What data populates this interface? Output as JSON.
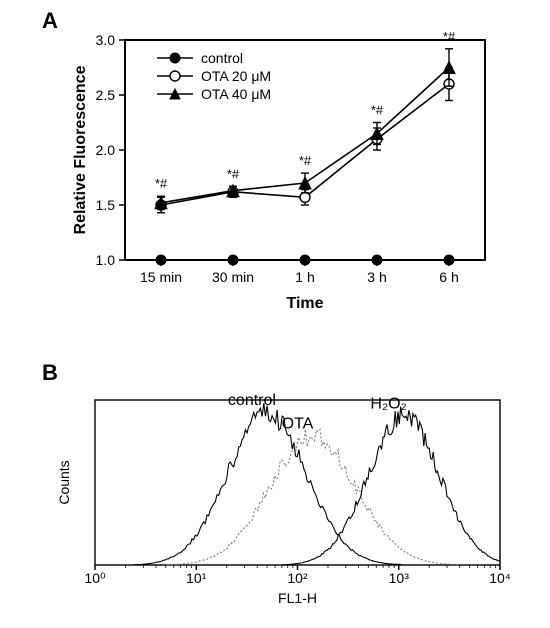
{
  "panelA": {
    "label": "A",
    "type": "line",
    "x_categories": [
      "15 min",
      "30 min",
      "1 h",
      "3 h",
      "6 h"
    ],
    "x_title": "Time",
    "y_title": "Relative Fluorescence",
    "ylim": [
      1.0,
      3.0
    ],
    "ytick_step": 0.5,
    "annotations": [
      "*#",
      "*#",
      "*#",
      "*#",
      "*#"
    ],
    "annotation_fontsize": 13,
    "title_fontsize": 16,
    "tick_fontsize": 14,
    "background_color": "#ffffff",
    "axis_color": "#000000",
    "line_width": 1.6,
    "legend": {
      "position": "top-left-inside",
      "items": [
        {
          "label": "control",
          "marker": "filled-circle",
          "color": "#000000"
        },
        {
          "label": "OTA 20 μM",
          "marker": "open-circle",
          "color": "#000000"
        },
        {
          "label": "OTA 40 μM",
          "marker": "filled-triangle",
          "color": "#000000"
        }
      ]
    },
    "series": [
      {
        "name": "control",
        "marker": "filled-circle",
        "marker_size": 5,
        "color": "#000000",
        "values": [
          1.0,
          1.0,
          1.0,
          1.0,
          1.0
        ],
        "err_low": [
          0,
          0,
          0,
          0,
          0
        ],
        "err_high": [
          0,
          0,
          0,
          0,
          0
        ]
      },
      {
        "name": "OTA 20 μM",
        "marker": "open-circle",
        "marker_size": 5,
        "color": "#000000",
        "values": [
          1.5,
          1.62,
          1.57,
          2.1,
          2.6
        ],
        "err_low": [
          0.07,
          0.05,
          0.07,
          0.1,
          0.15
        ],
        "err_high": [
          0.07,
          0.05,
          0.07,
          0.1,
          0.15
        ]
      },
      {
        "name": "OTA 40 μM",
        "marker": "filled-triangle",
        "marker_size": 6,
        "color": "#000000",
        "values": [
          1.52,
          1.63,
          1.7,
          2.15,
          2.75
        ],
        "err_low": [
          0.06,
          0.04,
          0.09,
          0.1,
          0.17
        ],
        "err_high": [
          0.06,
          0.04,
          0.09,
          0.1,
          0.17
        ]
      }
    ]
  },
  "panelB": {
    "label": "B",
    "type": "histogram-overlay",
    "x_title": "FL1-H",
    "y_title": "Counts",
    "x_scale": "log",
    "x_ticks": [
      "10⁰",
      "10¹",
      "10²",
      "10³",
      "10⁴"
    ],
    "background_color": "#ffffff",
    "axis_color": "#000000",
    "curves": [
      {
        "name": "control",
        "label": "control",
        "peak_x_log": 1.7,
        "height": 0.92,
        "width": 0.55,
        "stroke": "#000000",
        "style": "solid"
      },
      {
        "name": "OTA",
        "label": "OTA",
        "peak_x_log": 2.15,
        "height": 0.78,
        "width": 0.6,
        "stroke": "#7a7a7a",
        "style": "dotted"
      },
      {
        "name": "H2O2",
        "label": "H₂O₂",
        "peak_x_log": 3.05,
        "height": 0.9,
        "width": 0.5,
        "stroke": "#000000",
        "style": "solid"
      }
    ],
    "label_fontsize": 16,
    "tick_fontsize": 13
  }
}
